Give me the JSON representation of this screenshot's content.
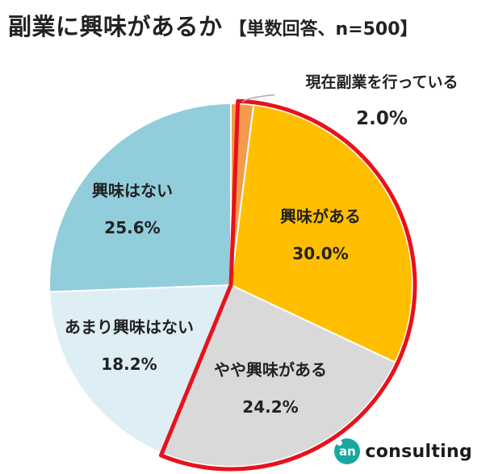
{
  "header": {
    "title": "副業に興味があるか",
    "subtitle": "【単数回答、n=500】"
  },
  "chart_data": {
    "type": "pie",
    "slices": [
      {
        "label": "現在副業を行っている",
        "value": 2.0,
        "value_label": "2.0%",
        "color": "#f39a4c",
        "highlight": true
      },
      {
        "label": "興味がある",
        "value": 30.0,
        "value_label": "30.0%",
        "color": "#ffbf00",
        "highlight": true
      },
      {
        "label": "やや興味がある",
        "value": 24.2,
        "value_label": "24.2%",
        "color": "#d9d9d9",
        "highlight": true
      },
      {
        "label": "あまり興味はない",
        "value": 18.2,
        "value_label": "18.2%",
        "color": "#deeef5",
        "highlight": false
      },
      {
        "label": "興味はない",
        "value": 25.6,
        "value_label": "25.6%",
        "color": "#92cddc",
        "highlight": false
      }
    ],
    "highlight_color": "#e8121b",
    "start": "12 o'clock",
    "direction": "clockwise"
  },
  "logo": {
    "mark": "an",
    "text": "consulting"
  }
}
